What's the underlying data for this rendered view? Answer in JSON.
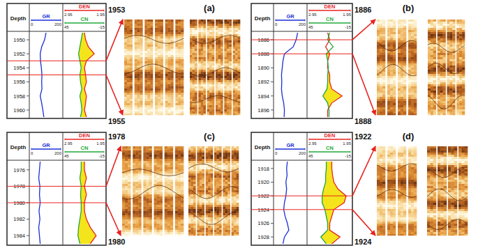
{
  "chart_data": [
    {
      "type": "line",
      "title": "(a)",
      "x_label": "Depth",
      "x": [
        1949,
        1950,
        1951,
        1952,
        1953,
        1954,
        1955,
        1956,
        1957,
        1958,
        1959,
        1960,
        1961
      ],
      "xlim": [
        1949,
        1961
      ],
      "xticks": [
        1950,
        1952,
        1954,
        1956,
        1958,
        1960
      ],
      "interval": [
        1953,
        1955
      ],
      "series": [
        {
          "name": "GR",
          "color": "#1a2fd6",
          "values": [
            100,
            90,
            70,
            60,
            62,
            68,
            72,
            70,
            72,
            60,
            70,
            78,
            85
          ],
          "ylim": [
            0,
            200
          ],
          "yticks": [
            0,
            200
          ]
        },
        {
          "name": "DEN",
          "color": "#e8231f",
          "values": [
            2.45,
            2.42,
            2.35,
            2.2,
            2.4,
            2.45,
            2.42,
            2.4,
            2.45,
            2.4,
            2.42,
            2.45,
            2.4
          ],
          "ylim": [
            2.95,
            1.95
          ],
          "yticks": [
            2.95,
            1.95
          ]
        },
        {
          "name": "CN",
          "color": "#1fa83a",
          "values": [
            18,
            20,
            22,
            24,
            22,
            20,
            22,
            21,
            19,
            22,
            20,
            19,
            21
          ],
          "ylim": [
            45,
            -15
          ],
          "yticks": [
            45,
            -15
          ]
        }
      ]
    },
    {
      "type": "line",
      "title": "(b)",
      "x_label": "Depth",
      "x": [
        1885,
        1886,
        1887,
        1888,
        1889,
        1890,
        1891,
        1892,
        1893,
        1894,
        1895,
        1896,
        1897
      ],
      "xlim": [
        1885,
        1897
      ],
      "xticks": [
        1886,
        1888,
        1890,
        1892,
        1894,
        1896
      ],
      "interval": [
        1886,
        1888
      ],
      "series": [
        {
          "name": "GR",
          "color": "#1a2fd6",
          "values": [
            150,
            140,
            120,
            60,
            50,
            45,
            40,
            42,
            40,
            45,
            55,
            60,
            58
          ],
          "ylim": [
            0,
            200
          ],
          "yticks": [
            0,
            200
          ]
        },
        {
          "name": "DEN",
          "color": "#e8231f",
          "values": [
            2.5,
            2.45,
            2.55,
            2.45,
            2.5,
            2.5,
            2.45,
            2.45,
            2.4,
            2.15,
            2.4,
            2.5,
            2.5
          ],
          "ylim": [
            2.95,
            1.95
          ],
          "yticks": [
            2.95,
            1.95
          ]
        },
        {
          "name": "CN",
          "color": "#1fa83a",
          "values": [
            15,
            18,
            10,
            20,
            18,
            17,
            18,
            18,
            19,
            25,
            18,
            16,
            16
          ],
          "ylim": [
            45,
            -15
          ],
          "yticks": [
            45,
            -15
          ]
        }
      ]
    },
    {
      "type": "line",
      "title": "(c)",
      "x_label": "Depth",
      "x": [
        1975,
        1976,
        1977,
        1978,
        1979,
        1980,
        1981,
        1982,
        1983,
        1984,
        1985
      ],
      "xlim": [
        1975,
        1985
      ],
      "xticks": [
        1976,
        1978,
        1980,
        1982,
        1984
      ],
      "interval": [
        1978,
        1980
      ],
      "series": [
        {
          "name": "GR",
          "color": "#1a2fd6",
          "values": [
            60,
            55,
            50,
            58,
            55,
            60,
            52,
            58,
            50,
            55,
            60
          ],
          "ylim": [
            0,
            200
          ],
          "yticks": [
            0,
            200
          ]
        },
        {
          "name": "DEN",
          "color": "#e8231f",
          "values": [
            2.45,
            2.45,
            2.4,
            2.45,
            2.4,
            2.45,
            2.45,
            2.4,
            2.3,
            2.15,
            2.3
          ],
          "ylim": [
            2.95,
            1.95
          ],
          "yticks": [
            2.95,
            1.95
          ]
        },
        {
          "name": "CN",
          "color": "#1fa83a",
          "values": [
            20,
            20,
            22,
            20,
            21,
            20,
            20,
            22,
            24,
            25,
            22
          ],
          "ylim": [
            45,
            -15
          ],
          "yticks": [
            45,
            -15
          ]
        }
      ]
    },
    {
      "type": "line",
      "title": "(d)",
      "x_label": "Depth",
      "x": [
        1917,
        1918,
        1919,
        1920,
        1921,
        1922,
        1923,
        1924,
        1925,
        1926,
        1927,
        1928,
        1929
      ],
      "xlim": [
        1917,
        1929
      ],
      "xticks": [
        1918,
        1920,
        1922,
        1924,
        1926,
        1928
      ],
      "interval": [
        1922,
        1924
      ],
      "series": [
        {
          "name": "GR",
          "color": "#1a2fd6",
          "values": [
            80,
            75,
            78,
            70,
            75,
            70,
            60,
            55,
            65,
            80,
            90,
            60,
            50
          ],
          "ylim": [
            0,
            200
          ],
          "yticks": [
            0,
            200
          ]
        },
        {
          "name": "DEN",
          "color": "#e8231f",
          "values": [
            2.4,
            2.4,
            2.38,
            2.35,
            2.25,
            2.05,
            2.1,
            2.35,
            2.4,
            2.45,
            2.45,
            2.2,
            2.4
          ],
          "ylim": [
            2.95,
            1.95
          ],
          "yticks": [
            2.95,
            1.95
          ]
        },
        {
          "name": "CN",
          "color": "#1fa83a",
          "values": [
            20,
            20,
            21,
            21,
            24,
            26,
            26,
            22,
            20,
            18,
            18,
            28,
            20
          ],
          "ylim": [
            45,
            -15
          ],
          "yticks": [
            45,
            -15
          ]
        }
      ]
    }
  ]
}
